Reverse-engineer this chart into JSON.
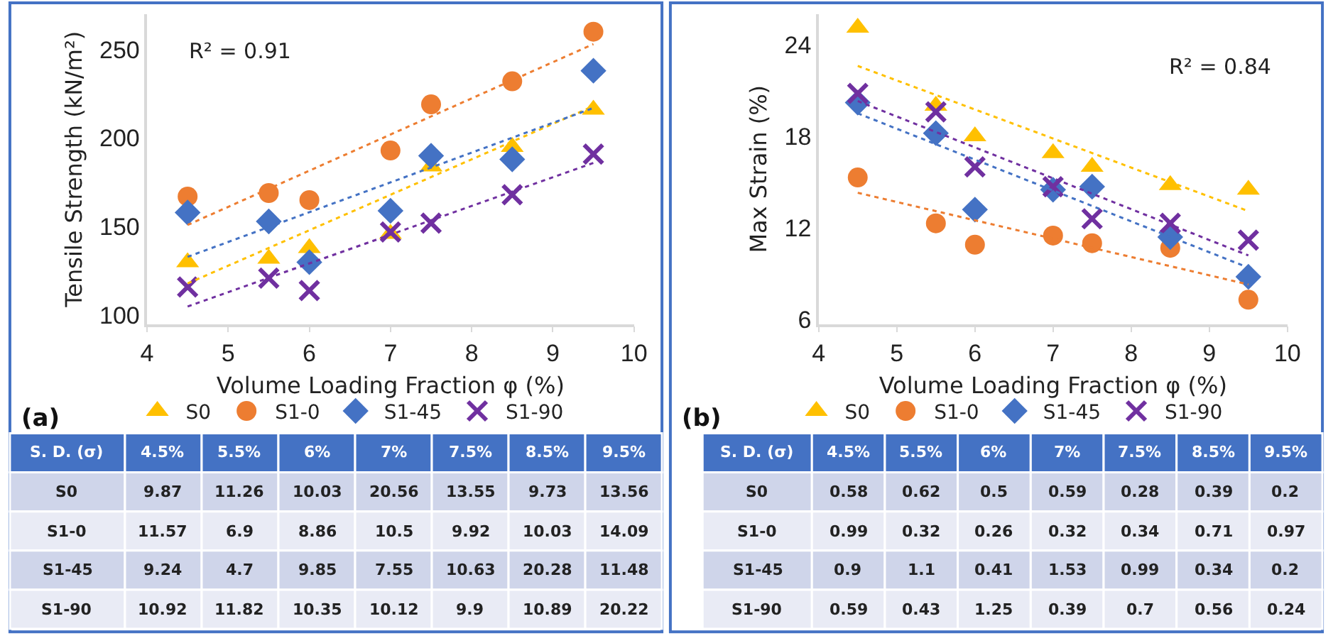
{
  "chart_data": [
    {
      "type": "scatter",
      "xlabel": "Volume Loading Fraction φ (%)",
      "ylabel": "Tensile Strength (kN/m²)",
      "xlim": [
        4,
        10
      ],
      "ylim": [
        95,
        270
      ],
      "xticks": [
        4,
        5,
        6,
        7,
        8,
        9,
        10
      ],
      "yticks": [
        100,
        150,
        200,
        250
      ],
      "legend": "bottom",
      "series": [
        {
          "name": "S0",
          "color": "#ffc000",
          "marker": "triangle",
          "x": [
            4.5,
            5.5,
            6,
            7,
            7.5,
            8.5,
            9.5
          ],
          "values": [
            130,
            132,
            138,
            146,
            184,
            195,
            216
          ]
        },
        {
          "name": "S1-0",
          "color": "#ed7d31",
          "marker": "circle",
          "x": [
            4.5,
            5.5,
            6,
            7,
            7.5,
            8.5,
            9.5
          ],
          "values": [
            167,
            169,
            165,
            193,
            219,
            232,
            260
          ]
        },
        {
          "name": "S1-45",
          "color": "#4472c4",
          "marker": "diamond",
          "x": [
            4.5,
            5.5,
            6,
            7,
            7.5,
            8.5,
            9.5
          ],
          "values": [
            158,
            153,
            130,
            159,
            190,
            188,
            238
          ]
        },
        {
          "name": "S1-90",
          "color": "#7030a0",
          "marker": "cross",
          "x": [
            4.5,
            5.5,
            6,
            7,
            7.5,
            8.5,
            9.5
          ],
          "values": [
            116,
            121,
            114,
            147,
            152,
            168,
            191
          ]
        },
        {
          "type": "line",
          "color": "#ffc000",
          "line_style": "dotted",
          "x": [
            4.5,
            9.5
          ],
          "values": [
            118,
            218
          ]
        },
        {
          "type": "line",
          "color": "#ed7d31",
          "line_style": "dotted",
          "x": [
            4.5,
            9.5
          ],
          "values": [
            151,
            253
          ]
        },
        {
          "type": "line",
          "color": "#4472c4",
          "line_style": "dotted",
          "x": [
            4.5,
            9.5
          ],
          "values": [
            133,
            217
          ]
        },
        {
          "type": "line",
          "color": "#7030a0",
          "line_style": "dotted",
          "x": [
            4.5,
            9.5
          ],
          "values": [
            105,
            186
          ]
        }
      ],
      "annotations": [
        "R² = 0.91",
        "(a)",
        "S. D. (σ)",
        "4.5%",
        "5.5%",
        "6%",
        "7%",
        "7.5%",
        "8.5%",
        "9.5%",
        "S0",
        "9.87",
        "11.26",
        "10.03",
        "20.56",
        "13.55",
        "9.73",
        "13.56",
        "S1-0",
        "11.57",
        "6.9",
        "8.86",
        "10.5",
        "9.92",
        "10.03",
        "14.09",
        "S1-45",
        "9.24",
        "4.7",
        "9.85",
        "7.55",
        "10.63",
        "20.28",
        "11.48",
        "S1-90",
        "10.92",
        "11.82",
        "10.35",
        "10.12",
        "9.9",
        "10.89",
        "20.22"
      ]
    },
    {
      "type": "scatter",
      "xlabel": "Volume Loading Fraction φ (%)",
      "ylabel": "Max Strain (%)",
      "xlim": [
        4,
        10
      ],
      "ylim": [
        5.7,
        26
      ],
      "xticks": [
        4,
        5,
        6,
        7,
        8,
        9,
        10
      ],
      "yticks": [
        6,
        12,
        18,
        24
      ],
      "legend": "bottom",
      "series": [
        {
          "name": "S0",
          "color": "#ffc000",
          "marker": "triangle",
          "x": [
            4.5,
            5.5,
            6,
            7,
            7.5,
            8.5,
            9.5
          ],
          "values": [
            25.1,
            20.0,
            18.0,
            16.9,
            16.0,
            14.8,
            14.5
          ]
        },
        {
          "name": "S1-0",
          "color": "#ed7d31",
          "marker": "circle",
          "x": [
            4.5,
            5.5,
            6,
            7,
            7.5,
            8.5,
            9.5
          ],
          "values": [
            15.3,
            12.3,
            10.9,
            11.5,
            11.0,
            10.7,
            7.3
          ]
        },
        {
          "name": "S1-45",
          "color": "#4472c4",
          "marker": "diamond",
          "x": [
            4.5,
            5.5,
            6,
            7,
            7.5,
            8.5,
            9.5
          ],
          "values": [
            20.2,
            18.2,
            13.2,
            14.5,
            14.7,
            11.4,
            8.8
          ]
        },
        {
          "name": "S1-90",
          "color": "#7030a0",
          "marker": "cross",
          "x": [
            4.5,
            5.5,
            6,
            7,
            7.5,
            8.5,
            9.5
          ],
          "values": [
            20.8,
            19.6,
            16.0,
            14.7,
            12.6,
            12.3,
            11.2
          ]
        },
        {
          "type": "line",
          "color": "#ffc000",
          "line_style": "dotted",
          "x": [
            4.5,
            9.5
          ],
          "values": [
            22.6,
            13.1
          ]
        },
        {
          "type": "line",
          "color": "#ed7d31",
          "line_style": "dotted",
          "x": [
            4.5,
            9.5
          ],
          "values": [
            14.3,
            8.3
          ]
        },
        {
          "type": "line",
          "color": "#4472c4",
          "line_style": "dotted",
          "x": [
            4.5,
            9.5
          ],
          "values": [
            19.5,
            9.4
          ]
        },
        {
          "type": "line",
          "color": "#7030a0",
          "line_style": "dotted",
          "x": [
            4.5,
            9.5
          ],
          "values": [
            20.3,
            10.2
          ]
        }
      ],
      "annotations": [
        "R² = 0.84",
        "(b)",
        "S. D. (σ)",
        "4.5%",
        "5.5%",
        "6%",
        "7%",
        "7.5%",
        "8.5%",
        "9.5%",
        "S0",
        "0.58",
        "0.62",
        "0.5",
        "0.59",
        "0.28",
        "0.39",
        "0.2",
        "S1-0",
        "0.99",
        "0.32",
        "0.26",
        "0.32",
        "0.34",
        "0.71",
        "0.97",
        "S1-45",
        "0.9",
        "1.1",
        "0.41",
        "1.53",
        "0.99",
        "0.34",
        "0.2",
        "S1-90",
        "0.59",
        "0.43",
        "1.25",
        "0.39",
        "0.7",
        "0.56",
        "0.24"
      ]
    }
  ]
}
